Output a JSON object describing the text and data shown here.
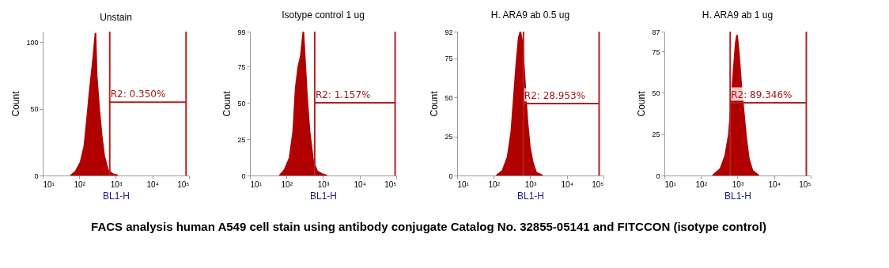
{
  "chart_data": [
    {
      "type": "area",
      "title": "Unstain",
      "xlabel": "BL1-H",
      "ylabel": "Count",
      "log": "x",
      "xlim": [
        10,
        100000
      ],
      "ylim": [
        0,
        108
      ],
      "yticks": [
        0,
        50,
        100
      ],
      "xticks": [
        {
          "value": 10,
          "label": "10¹"
        },
        {
          "value": 100,
          "label": "10²"
        },
        {
          "value": 1000,
          "label": "10³"
        },
        {
          "value": 10000,
          "label": "10⁴"
        },
        {
          "value": 100000,
          "label": "10⁵"
        }
      ],
      "series": [
        {
          "color": "#b00000",
          "x": [
            58,
            79,
            108,
            137,
            160,
            187,
            219,
            244,
            277,
            299,
            350,
            409,
            479,
            605,
            829,
            1130
          ],
          "values": [
            0,
            3,
            10,
            22,
            40,
            60,
            78,
            90,
            107,
            75,
            50,
            30,
            15,
            4,
            1,
            0
          ]
        }
      ],
      "ref_lines": [
        {
          "axis": "x",
          "value": 680,
          "color": "#b22222"
        },
        {
          "axis": "x",
          "value": 83000,
          "color": "#b22222"
        }
      ],
      "annotations": [
        {
          "text": "R2: 0.350%",
          "x": 680,
          "y": 55
        },
        "FACS analysis human A549 cell stain using antibody conjugate Catalog No. 32855-05141 and FITCCON (isotype control)"
      ]
    },
    {
      "type": "area",
      "title": "Isotype control 1 ug",
      "xlabel": "BL1-H",
      "ylabel": "Count",
      "log": "x",
      "xlim": [
        10,
        100000
      ],
      "ylim": [
        0,
        99
      ],
      "yticks": [
        0,
        25,
        50,
        75,
        99
      ],
      "xticks": [
        {
          "value": 10,
          "label": "10¹"
        },
        {
          "value": 100,
          "label": "10²"
        },
        {
          "value": 1000,
          "label": "10³"
        },
        {
          "value": 10000,
          "label": "10⁴"
        },
        {
          "value": 100000,
          "label": "10⁵"
        }
      ],
      "series": [
        {
          "color": "#b00000",
          "x": [
            65,
            89,
            121,
            152,
            178,
            210,
            245,
            288,
            311,
            361,
            428,
            536,
            689,
            935,
            1280
          ],
          "values": [
            0,
            4,
            12,
            30,
            60,
            75,
            82,
            99,
            85,
            55,
            30,
            10,
            3,
            1,
            0
          ]
        }
      ],
      "ref_lines": [
        {
          "axis": "x",
          "value": 590,
          "color": "#b22222"
        },
        {
          "axis": "x",
          "value": 93000,
          "color": "#b22222"
        }
      ],
      "annotations": [
        {
          "text": "R2: 1.157%",
          "x": 590,
          "y": 50
        }
      ]
    },
    {
      "type": "area",
      "title": "H. ARA9 ab 0.5 ug",
      "xlabel": "BL1-H",
      "ylabel": "Count",
      "log": "x",
      "xlim": [
        10,
        100000
      ],
      "ylim": [
        0,
        92
      ],
      "yticks": [
        0,
        25,
        50,
        75,
        92
      ],
      "xticks": [
        {
          "value": 10,
          "label": "10¹"
        },
        {
          "value": 100,
          "label": "10²"
        },
        {
          "value": 1000,
          "label": "10³"
        },
        {
          "value": 10000,
          "label": "10⁴"
        },
        {
          "value": 100000,
          "label": "10⁵"
        }
      ],
      "series": [
        {
          "color": "#b00000",
          "x": [
            118,
            173,
            240,
            302,
            355,
            410,
            480,
            535,
            610,
            710,
            830,
            975,
            1180,
            1440,
            2140
          ],
          "values": [
            0,
            3,
            12,
            28,
            50,
            70,
            88,
            92,
            85,
            60,
            35,
            18,
            8,
            2,
            0
          ]
        }
      ],
      "ref_lines": [
        {
          "axis": "x",
          "value": 650,
          "color": "#b22222"
        },
        {
          "axis": "x",
          "value": 76000,
          "color": "#b22222"
        }
      ],
      "annotations": [
        {
          "text": "R2: 28.953%",
          "x": 650,
          "y": 46
        }
      ]
    },
    {
      "type": "area",
      "title": "H. ARA9 ab 1 ug",
      "xlabel": "BL1-H",
      "ylabel": "Count",
      "log": "x",
      "xlim": [
        10,
        100000
      ],
      "ylim": [
        0,
        87
      ],
      "yticks": [
        0,
        25,
        50,
        75,
        87
      ],
      "xticks": [
        {
          "value": 10,
          "label": "10¹"
        },
        {
          "value": 100,
          "label": "10²"
        },
        {
          "value": 1000,
          "label": "10³"
        },
        {
          "value": 10000,
          "label": "10⁴"
        },
        {
          "value": 100000,
          "label": "10⁵"
        }
      ],
      "series": [
        {
          "color": "#b00000",
          "x": [
            209,
            340,
            460,
            580,
            680,
            790,
            890,
            970,
            1080,
            1260,
            1480,
            1740,
            2040,
            2570,
            3800
          ],
          "values": [
            0,
            4,
            12,
            25,
            45,
            65,
            80,
            85,
            75,
            55,
            38,
            22,
            10,
            3,
            0
          ]
        }
      ],
      "ref_lines": [
        {
          "axis": "x",
          "value": 630,
          "color": "#b22222"
        },
        {
          "axis": "x",
          "value": 76000,
          "color": "#b22222"
        }
      ],
      "annotations": [
        {
          "text": "R2: 89.346%",
          "x": 630,
          "y": 44
        }
      ]
    }
  ]
}
